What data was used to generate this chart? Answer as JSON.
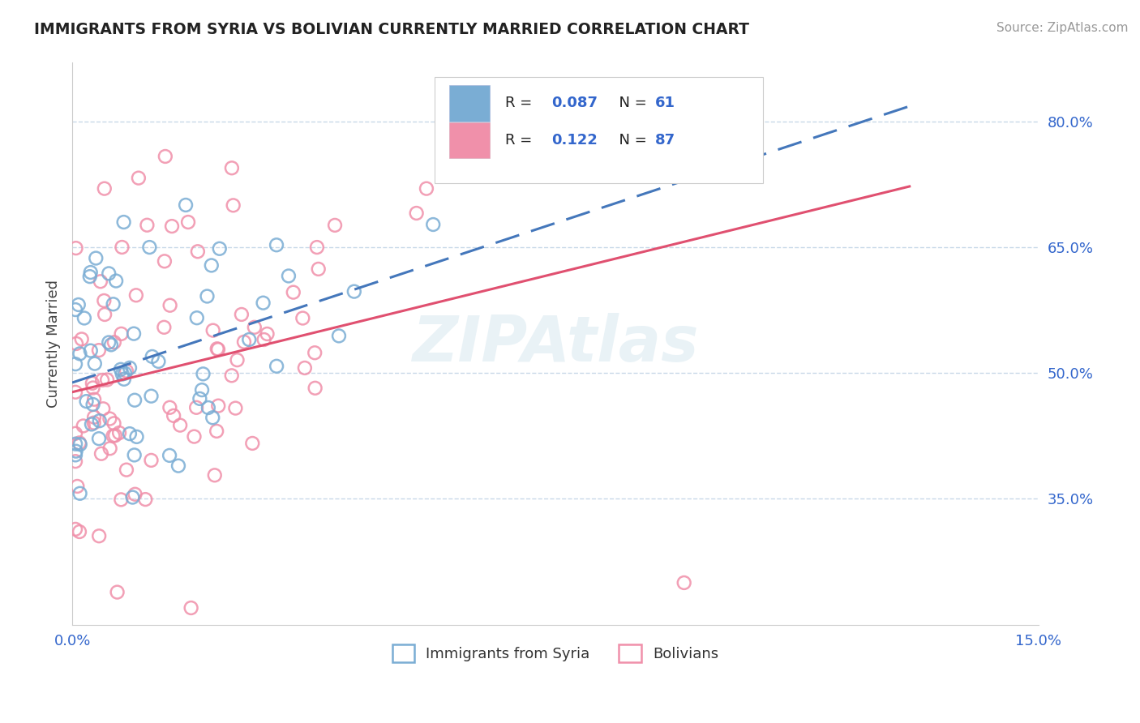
{
  "title": "IMMIGRANTS FROM SYRIA VS BOLIVIAN CURRENTLY MARRIED CORRELATION CHART",
  "source": "Source: ZipAtlas.com",
  "ylabel": "Currently Married",
  "xlim": [
    0.0,
    0.15
  ],
  "ylim": [
    0.2,
    0.87
  ],
  "x_ticks": [
    0.0,
    0.15
  ],
  "x_tick_labels": [
    "0.0%",
    "15.0%"
  ],
  "y_ticks": [
    0.35,
    0.5,
    0.65,
    0.8
  ],
  "y_tick_labels": [
    "35.0%",
    "50.0%",
    "65.0%",
    "80.0%"
  ],
  "color_syria": "#7aadd4",
  "color_bolivia": "#f090aa",
  "trendline_color_syria": "#4477bb",
  "trendline_color_bolivia": "#e05070",
  "watermark": "ZIPAtlas",
  "tick_color": "#3366cc",
  "grid_color": "#c8d8e8"
}
